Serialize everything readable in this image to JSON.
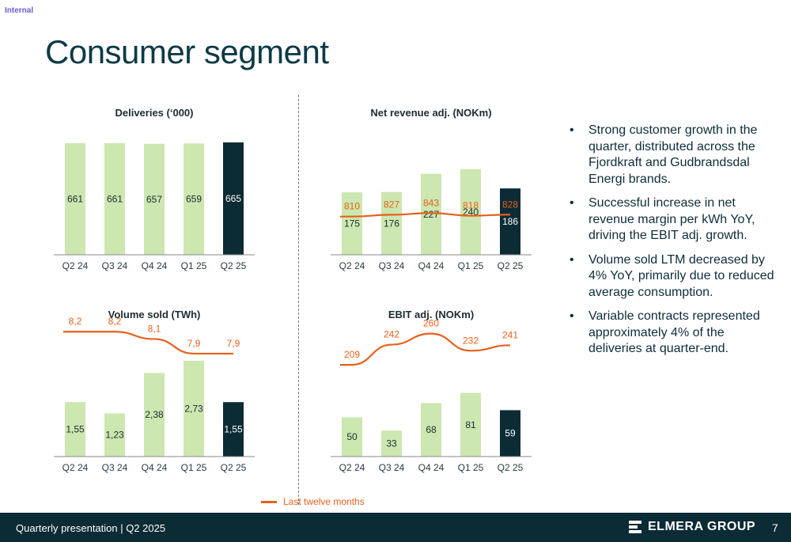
{
  "header": {
    "tag": "Internal",
    "title": "Consumer segment"
  },
  "colors": {
    "bar": "#cde7b0",
    "bar_highlight": "#0b2b35",
    "ltm_line": "#e8601c"
  },
  "chart_data": [
    {
      "type": "bar",
      "title": "Deliveries (‘000)",
      "categories": [
        "Q2 24",
        "Q3 24",
        "Q4 24",
        "Q1 25",
        "Q2 25"
      ],
      "values": [
        661,
        661,
        657,
        659,
        665
      ],
      "value_labels": [
        "661",
        "661",
        "657",
        "659",
        "665"
      ],
      "ylim": [
        0,
        665
      ],
      "highlight_index": 4
    },
    {
      "type": "bar",
      "title": "Net revenue adj. (NOKm)",
      "categories": [
        "Q2 24",
        "Q3 24",
        "Q4 24",
        "Q1 25",
        "Q2 25"
      ],
      "values": [
        175,
        176,
        227,
        240,
        186
      ],
      "value_labels": [
        "175",
        "176",
        "227",
        "240",
        "186"
      ],
      "ylim": [
        0,
        315
      ],
      "highlight_index": 4,
      "series": [
        {
          "name": "Last twelve months",
          "type": "line",
          "values": [
            810,
            827,
            843,
            818,
            828
          ],
          "labels": [
            "810",
            "827",
            "843",
            "818",
            "828"
          ]
        }
      ]
    },
    {
      "type": "bar",
      "title": "Volume sold (TWh)",
      "categories": [
        "Q2 24",
        "Q3 24",
        "Q4 24",
        "Q1 25",
        "Q2 25"
      ],
      "values": [
        1.55,
        1.23,
        2.38,
        2.73,
        1.55
      ],
      "value_labels": [
        "1,55",
        "1,23",
        "2,38",
        "2,73",
        "1,55"
      ],
      "ylim": [
        0,
        3.2
      ],
      "highlight_index": 4,
      "series": [
        {
          "name": "Last twelve months",
          "type": "line",
          "values": [
            8.2,
            8.2,
            8.1,
            7.9,
            7.9
          ],
          "labels": [
            "8,2",
            "8,2",
            "8,1",
            "7,9",
            "7,9"
          ]
        }
      ]
    },
    {
      "type": "bar",
      "title": "EBIT adj. (NOKm)",
      "categories": [
        "Q2 24",
        "Q3 24",
        "Q4 24",
        "Q1 25",
        "Q2 25"
      ],
      "values": [
        50,
        33,
        68,
        81,
        59
      ],
      "value_labels": [
        "50",
        "33",
        "68",
        "81",
        "59"
      ],
      "ylim": [
        0,
        143
      ],
      "highlight_index": 4,
      "series": [
        {
          "name": "Last twelve months",
          "type": "line",
          "values": [
            209,
            242,
            260,
            232,
            241
          ],
          "labels": [
            "209",
            "242",
            "260",
            "232",
            "241"
          ]
        }
      ]
    }
  ],
  "bullets": [
    "Strong customer growth in the quarter, distributed across the Fjordkraft and Gudbrandsdal Energi brands.",
    "Successful increase in net revenue margin per kWh YoY, driving the EBIT adj. growth.",
    "Volume sold LTM decreased by 4% YoY, primarily due to reduced average consumption.",
    "Variable contracts represented approximately 4% of the deliveries at quarter-end."
  ],
  "bullet_marker": "•",
  "legend": {
    "label": "Last twelve months"
  },
  "footer": {
    "text": "Quarterly presentation | Q2 2025",
    "brand": "ELMERA GROUP",
    "page": "7"
  }
}
